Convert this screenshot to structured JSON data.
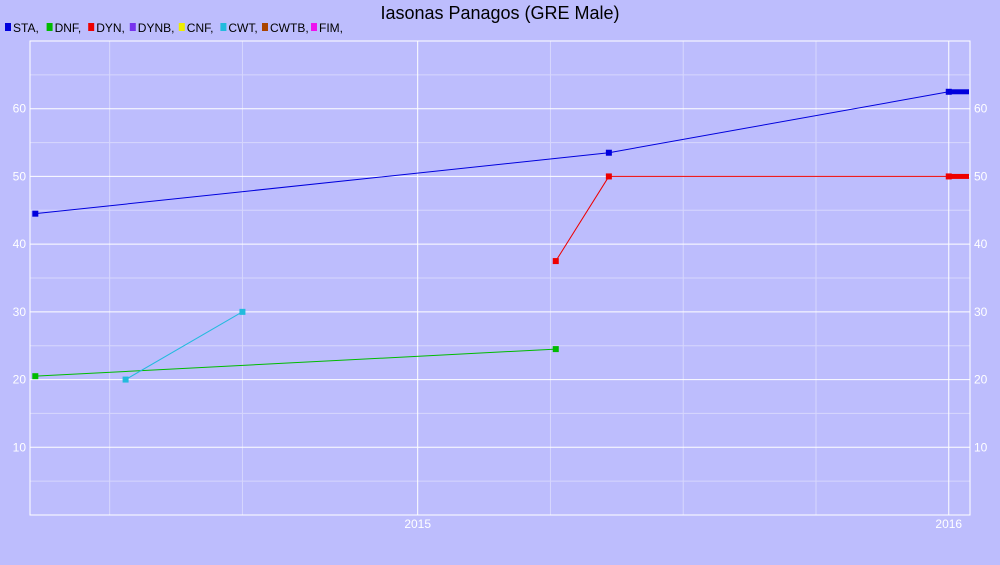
{
  "chart_data": {
    "type": "line",
    "title": "Iasonas Panagos (GRE Male)",
    "colors": {
      "background": "#bdbdfd",
      "grid_major": "#ffffff",
      "grid_minor": "#d7d7fd",
      "axis_text": "#ffffff",
      "title_text": "#000000"
    },
    "legend": {
      "placement": "top-left",
      "entries": [
        {
          "label": "STA,",
          "color": "#0000dd"
        },
        {
          "label": "DNF,",
          "color": "#00bb00"
        },
        {
          "label": "DYN,",
          "color": "#ee0000"
        },
        {
          "label": "DYNB,",
          "color": "#7733ee"
        },
        {
          "label": "CNF,",
          "color": "#eeee00"
        },
        {
          "label": "CWT,",
          "color": "#22bbdd"
        },
        {
          "label": "CWTB,",
          "color": "#aa4400"
        },
        {
          "label": "FIM,",
          "color": "#ee11ee"
        }
      ]
    },
    "x_axis": {
      "range": [
        2014.27,
        2016.04
      ],
      "ticks": [
        {
          "value": 2015.0,
          "label": "2015"
        },
        {
          "value": 2016.0,
          "label": "2016"
        }
      ],
      "minor_ticks": [
        2014.42,
        2014.67,
        2015.25,
        2015.5,
        2015.75
      ]
    },
    "y_axis": {
      "range": [
        0,
        70
      ],
      "ticks": [
        10,
        20,
        30,
        40,
        50,
        60
      ],
      "minor_ticks": [
        5,
        15,
        25,
        35,
        45,
        55,
        65
      ],
      "labels_on_both_sides": true
    },
    "grid": true,
    "series": [
      {
        "name": "STA",
        "color": "#0000dd",
        "points": [
          [
            2014.28,
            44.5
          ],
          [
            2015.36,
            53.5
          ],
          [
            2016.0,
            62.5
          ]
        ],
        "end_marker": true
      },
      {
        "name": "DNF",
        "color": "#00bb00",
        "points": [
          [
            2014.28,
            20.5
          ],
          [
            2015.26,
            24.5
          ]
        ]
      },
      {
        "name": "DYN",
        "color": "#ee0000",
        "points": [
          [
            2015.26,
            37.5
          ],
          [
            2015.36,
            50.0
          ],
          [
            2016.0,
            50.0
          ]
        ],
        "end_marker": true
      },
      {
        "name": "CWT",
        "color": "#22bbdd",
        "points": [
          [
            2014.45,
            20.0
          ],
          [
            2014.67,
            30.0
          ]
        ]
      }
    ]
  }
}
